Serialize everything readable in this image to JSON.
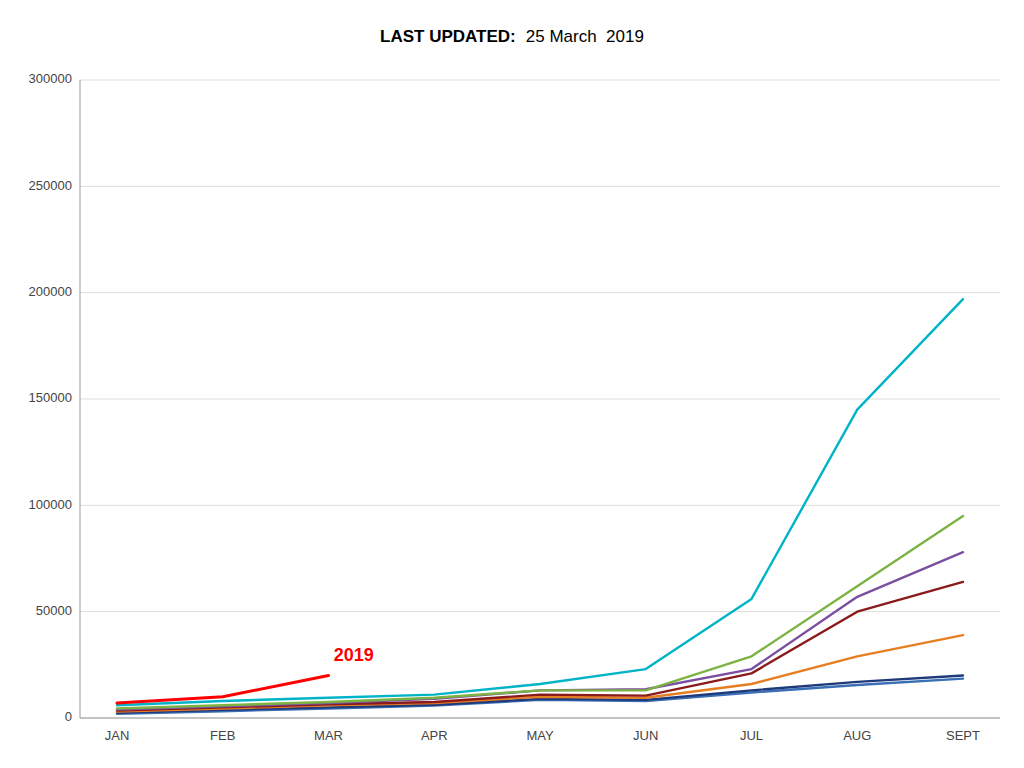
{
  "chart_data": {
    "type": "line",
    "title": "LAST UPDATED:",
    "subtitle": "25 March  2019",
    "categories": [
      "JAN",
      "FEB",
      "MAR",
      "APR",
      "MAY",
      "JUN",
      "JUL",
      "AUG",
      "SEPT"
    ],
    "series": [
      {
        "color": "#3a6eb5",
        "values": [
          2000,
          3200,
          4500,
          5800,
          8500,
          8000,
          12000,
          15500,
          18500
        ]
      },
      {
        "color": "#1f3a7a",
        "values": [
          2500,
          3800,
          5000,
          6200,
          9000,
          8500,
          13000,
          17000,
          20000
        ]
      },
      {
        "color": "#e67e22",
        "values": [
          3000,
          4500,
          6000,
          7000,
          10000,
          9500,
          16000,
          29000,
          39000
        ]
      },
      {
        "color": "#8b1a1a",
        "values": [
          3500,
          5000,
          6500,
          7500,
          11000,
          10500,
          21000,
          50000,
          64000
        ]
      },
      {
        "color": "#7b4fa0",
        "values": [
          4000,
          5500,
          7000,
          9000,
          13000,
          13500,
          23000,
          57000,
          78000
        ]
      },
      {
        "color": "#7cb342",
        "values": [
          4500,
          6000,
          7500,
          9500,
          13000,
          13000,
          29000,
          62000,
          95000
        ]
      },
      {
        "color": "#00b4c8",
        "values": [
          6000,
          8000,
          9500,
          11000,
          16000,
          23000,
          56000,
          145000,
          197000
        ]
      },
      {
        "color": "#ff0000",
        "values": [
          7000,
          10000,
          20000,
          null,
          null,
          null,
          null,
          null,
          null
        ]
      }
    ],
    "annotations": [
      {
        "text": "2019",
        "x": 2.05,
        "y": 27000
      }
    ],
    "ylim": [
      0,
      300000
    ],
    "yticks": [
      0,
      50000,
      100000,
      150000,
      200000,
      250000,
      300000
    ],
    "grid": true
  }
}
